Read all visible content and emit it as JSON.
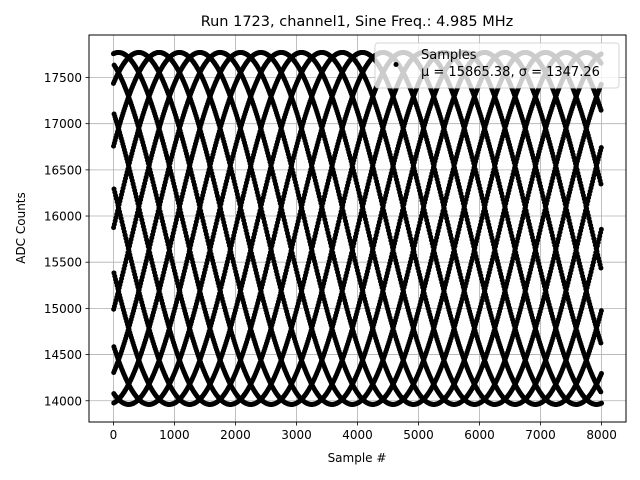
{
  "chart_data": {
    "type": "scatter",
    "title": "Run 1723, channel1, Sine Freq.: 4.985 MHz",
    "xlabel": "Sample #",
    "ylabel": "ADC Counts",
    "xlim": [
      -400,
      8400
    ],
    "ylim": [
      13770,
      17960
    ],
    "xticks": [
      0,
      1000,
      2000,
      3000,
      4000,
      5000,
      6000,
      7000,
      8000
    ],
    "xtick_labels": [
      "0",
      "1000",
      "2000",
      "3000",
      "4000",
      "5000",
      "6000",
      "7000",
      "8000"
    ],
    "yticks": [
      14000,
      14500,
      15000,
      15500,
      16000,
      16500,
      17000,
      17500
    ],
    "ytick_labels": [
      "14000",
      "14500",
      "15000",
      "15500",
      "16000",
      "16500",
      "17000",
      "17500"
    ],
    "grid": true,
    "legend": {
      "placement": "top-right",
      "entries": [
        "Samples",
        "μ = 15865.38, σ = 1347.26"
      ]
    },
    "series": [
      {
        "name": "Samples",
        "color": "#000000",
        "marker": "circle",
        "signal": "sine",
        "frequency_mhz": 4.985,
        "n_samples": 8000,
        "mean": 15865.38,
        "std": 1347.26
      }
    ]
  }
}
